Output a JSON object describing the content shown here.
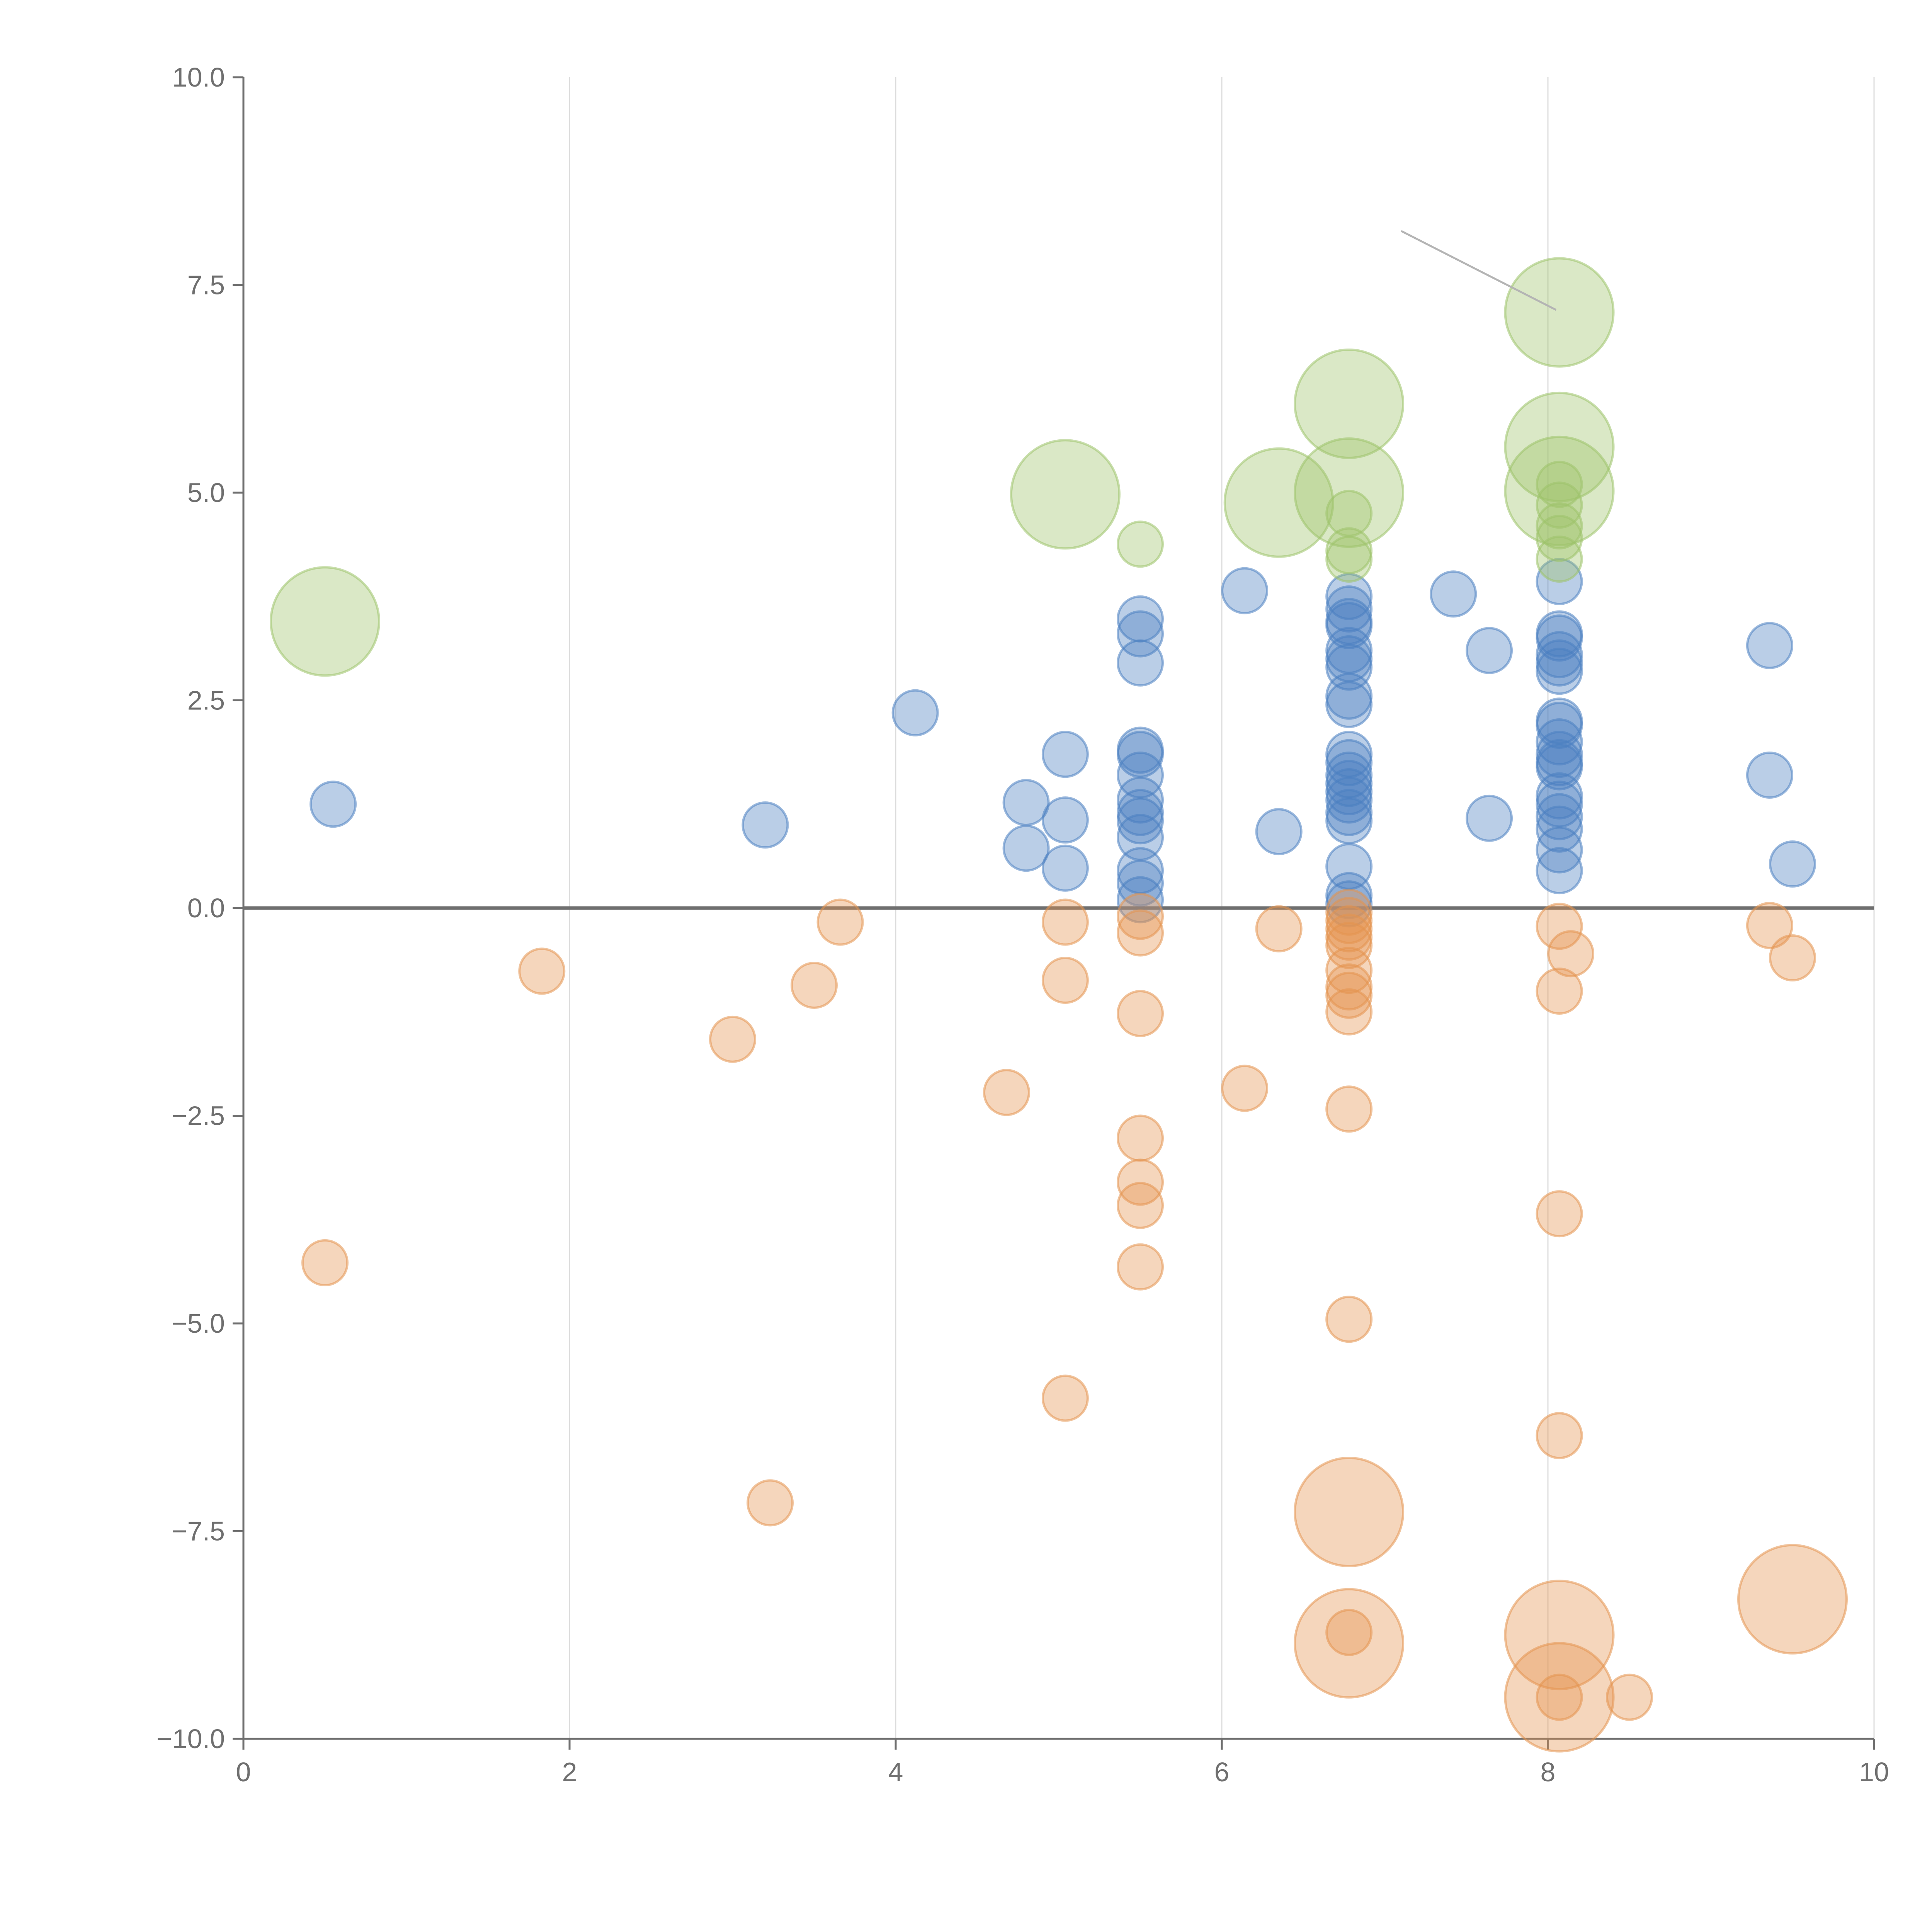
{
  "chart_data": {
    "type": "scatter",
    "title": "",
    "xlabel": "",
    "ylabel": "",
    "xlim": [
      0,
      10
    ],
    "ylim": [
      -10,
      10
    ],
    "x_ticks": [
      0,
      2,
      4,
      6,
      8,
      10
    ],
    "y_ticks": [
      10,
      7.5,
      5,
      2.5,
      0,
      -2.5,
      -5,
      -7.5,
      -10
    ],
    "x_tick_labels": [
      "0",
      "2",
      "4",
      "6",
      "8",
      "10"
    ],
    "y_tick_labels": [
      "10.0",
      "7.5",
      "5.0",
      "2.5",
      "0.0",
      "−2.5",
      "−5.0",
      "−7.5",
      "−10.0"
    ],
    "grid": {
      "vertical": true,
      "horizontal": false
    },
    "zero_line": true,
    "legend": "none",
    "series": [
      {
        "color": "#4a7fc1",
        "points": [
          [
            0.55,
            1.25
          ],
          [
            3.2,
            1.0
          ],
          [
            4.12,
            2.35
          ],
          [
            4.8,
            1.27
          ],
          [
            4.8,
            0.72
          ],
          [
            5.04,
            1.85
          ],
          [
            5.04,
            1.06
          ],
          [
            5.04,
            0.48
          ],
          [
            5.5,
            3.48
          ],
          [
            5.5,
            3.3
          ],
          [
            5.5,
            2.95
          ],
          [
            5.5,
            1.9
          ],
          [
            5.5,
            1.85
          ],
          [
            5.5,
            1.6
          ],
          [
            5.5,
            1.3
          ],
          [
            5.5,
            1.15
          ],
          [
            5.5,
            1.05
          ],
          [
            5.5,
            0.85
          ],
          [
            5.5,
            0.45
          ],
          [
            5.5,
            0.3
          ],
          [
            5.5,
            0.1
          ],
          [
            6.14,
            3.82
          ],
          [
            6.35,
            0.92
          ],
          [
            6.78,
            3.75
          ],
          [
            6.78,
            3.6
          ],
          [
            6.78,
            3.45
          ],
          [
            6.78,
            3.4
          ],
          [
            6.78,
            3.1
          ],
          [
            6.78,
            3.0
          ],
          [
            6.78,
            2.9
          ],
          [
            6.78,
            2.55
          ],
          [
            6.78,
            2.45
          ],
          [
            6.78,
            1.85
          ],
          [
            6.78,
            1.75
          ],
          [
            6.78,
            1.6
          ],
          [
            6.78,
            1.5
          ],
          [
            6.78,
            1.4
          ],
          [
            6.78,
            1.3
          ],
          [
            6.78,
            1.15
          ],
          [
            6.78,
            1.05
          ],
          [
            6.78,
            0.5
          ],
          [
            6.78,
            0.15
          ],
          [
            6.78,
            0.05
          ],
          [
            7.42,
            3.78
          ],
          [
            7.64,
            3.1
          ],
          [
            7.64,
            1.08
          ],
          [
            8.07,
            3.93
          ],
          [
            8.07,
            3.3
          ],
          [
            8.07,
            3.25
          ],
          [
            8.07,
            3.05
          ],
          [
            8.07,
            2.95
          ],
          [
            8.07,
            2.85
          ],
          [
            8.07,
            2.25
          ],
          [
            8.07,
            2.2
          ],
          [
            8.07,
            2.0
          ],
          [
            8.07,
            1.85
          ],
          [
            8.07,
            1.75
          ],
          [
            8.07,
            1.7
          ],
          [
            8.07,
            1.35
          ],
          [
            8.07,
            1.25
          ],
          [
            8.07,
            1.1
          ],
          [
            8.07,
            0.95
          ],
          [
            8.07,
            0.7
          ],
          [
            8.07,
            0.45
          ],
          [
            9.36,
            3.16
          ],
          [
            9.36,
            1.6
          ],
          [
            9.5,
            0.53
          ]
        ]
      },
      {
        "color": "#e4934f",
        "points": [
          [
            0.5,
            -4.27
          ],
          [
            1.83,
            -0.76
          ],
          [
            3.0,
            -1.58
          ],
          [
            3.23,
            -7.16
          ],
          [
            3.5,
            -0.93
          ],
          [
            3.66,
            -0.17
          ],
          [
            4.68,
            -2.22
          ],
          [
            5.04,
            -0.17
          ],
          [
            5.04,
            -0.87
          ],
          [
            5.04,
            -5.9
          ],
          [
            5.5,
            -0.1
          ],
          [
            5.5,
            -0.3
          ],
          [
            5.5,
            -1.27
          ],
          [
            5.5,
            -2.77
          ],
          [
            5.5,
            -3.3
          ],
          [
            5.5,
            -3.58
          ],
          [
            5.5,
            -4.32
          ],
          [
            6.14,
            -2.17
          ],
          [
            6.35,
            -0.25
          ],
          [
            6.78,
            -0.05
          ],
          [
            6.78,
            -0.15
          ],
          [
            6.78,
            -0.25
          ],
          [
            6.78,
            -0.35
          ],
          [
            6.78,
            -0.45
          ],
          [
            6.78,
            -0.75
          ],
          [
            6.78,
            -0.95
          ],
          [
            6.78,
            -1.05
          ],
          [
            6.78,
            -1.25
          ],
          [
            6.78,
            -2.42
          ],
          [
            6.78,
            -4.95
          ],
          [
            6.78,
            -8.72
          ],
          [
            8.07,
            -0.22
          ],
          [
            8.07,
            -1.0
          ],
          [
            8.07,
            -3.68
          ],
          [
            8.07,
            -6.35
          ],
          [
            8.07,
            -9.5
          ],
          [
            8.14,
            -0.55
          ],
          [
            8.5,
            -9.5
          ],
          [
            9.36,
            -0.21
          ],
          [
            9.5,
            -0.6
          ]
        ]
      },
      {
        "color": "#9dc36a",
        "points": [
          [
            5.5,
            4.38
          ],
          [
            6.78,
            4.75
          ],
          [
            6.78,
            4.3
          ],
          [
            6.78,
            4.2
          ],
          [
            8.07,
            5.1
          ],
          [
            8.07,
            4.85
          ],
          [
            8.07,
            4.6
          ],
          [
            8.07,
            4.45
          ],
          [
            8.07,
            4.2
          ]
        ]
      }
    ],
    "large_points": [
      {
        "color": "#9dc36a",
        "x": 0.5,
        "y": 3.45
      },
      {
        "color": "#9dc36a",
        "x": 5.04,
        "y": 4.98
      },
      {
        "color": "#9dc36a",
        "x": 6.35,
        "y": 4.88
      },
      {
        "color": "#9dc36a",
        "x": 6.78,
        "y": 6.07
      },
      {
        "color": "#9dc36a",
        "x": 6.78,
        "y": 5.0
      },
      {
        "color": "#9dc36a",
        "x": 8.07,
        "y": 7.17
      },
      {
        "color": "#9dc36a",
        "x": 8.07,
        "y": 5.55
      },
      {
        "color": "#9dc36a",
        "x": 8.07,
        "y": 5.02
      },
      {
        "color": "#e4934f",
        "x": 6.78,
        "y": -7.27
      },
      {
        "color": "#e4934f",
        "x": 6.78,
        "y": -8.85
      },
      {
        "color": "#e4934f",
        "x": 8.07,
        "y": -8.75
      },
      {
        "color": "#e4934f",
        "x": 8.07,
        "y": -9.5
      },
      {
        "color": "#e4934f",
        "x": 9.5,
        "y": -8.32
      }
    ],
    "annotation_leaders": [
      {
        "from": [
          7.1,
          8.15
        ],
        "to": [
          8.05,
          7.2
        ]
      }
    ]
  }
}
